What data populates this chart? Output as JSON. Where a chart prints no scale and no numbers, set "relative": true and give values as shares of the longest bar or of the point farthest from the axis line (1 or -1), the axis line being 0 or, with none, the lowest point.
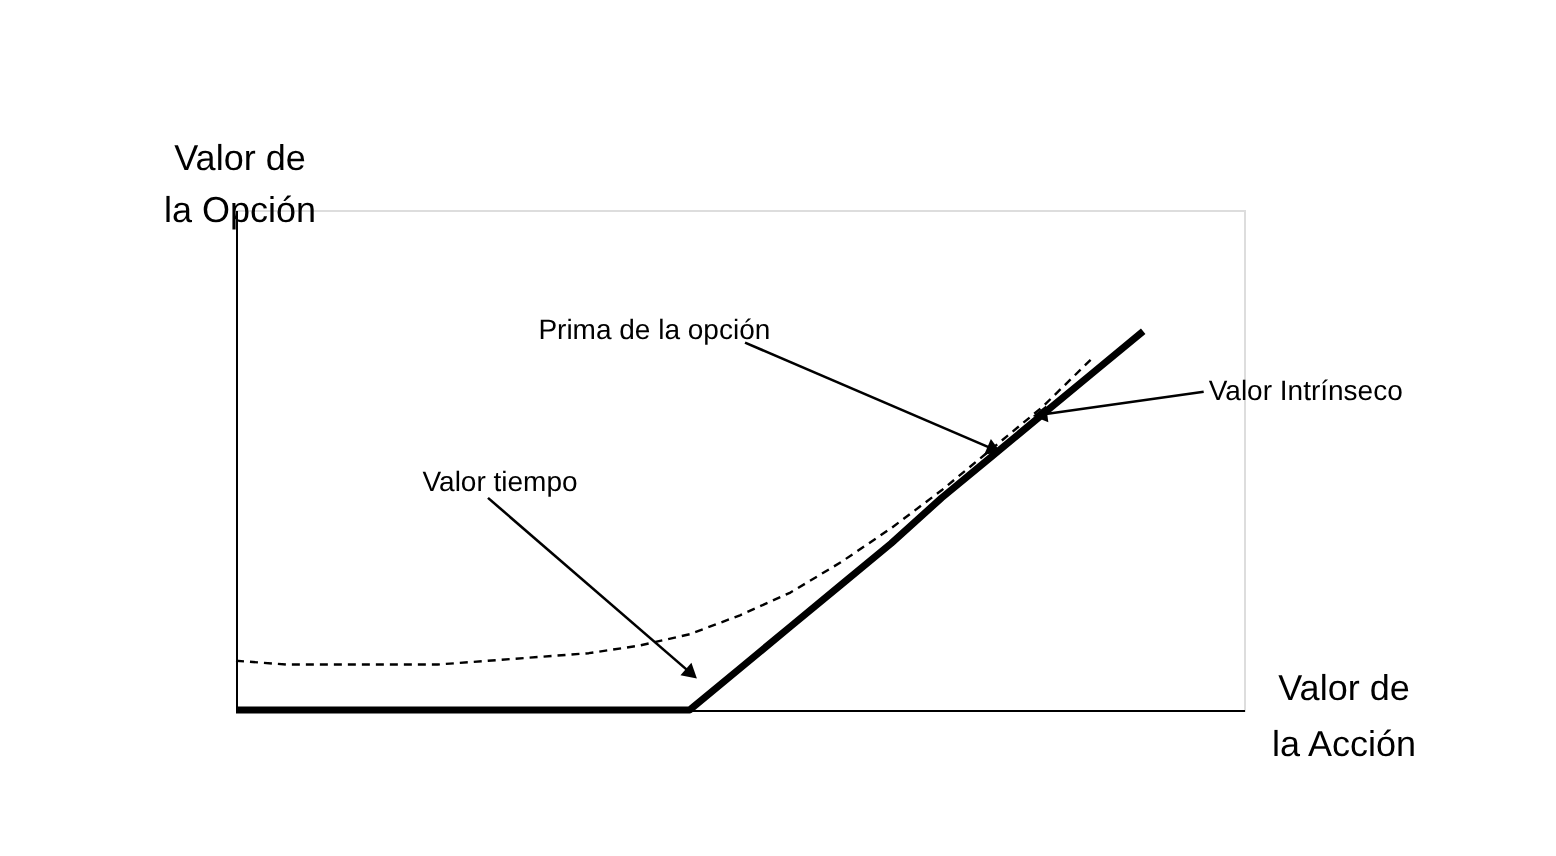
{
  "chart_data": {
    "type": "line",
    "relative": true,
    "xlabel": "Valor de la Acción",
    "ylabel": "Valor de la Opción",
    "categories": [
      null,
      null,
      null,
      null,
      null,
      null,
      null,
      null,
      null,
      null,
      null,
      null,
      null,
      null,
      null,
      null,
      null,
      null,
      null,
      null,
      null
    ],
    "series": [
      {
        "color": "#000000",
        "line_style": "dashed",
        "values": [
          0.13,
          0.12,
          0.12,
          0.12,
          0.12,
          0.13,
          0.14,
          0.15,
          0.17,
          0.2,
          0.25,
          0.31,
          0.39,
          0.48,
          0.58,
          0.69,
          0.8,
          0.93,
          null,
          null,
          null
        ]
      },
      {
        "color": "#000000",
        "line_style": "solid",
        "values": [
          0,
          0,
          0,
          0,
          0,
          0,
          0,
          0,
          0,
          0,
          0.11,
          0.22,
          0.33,
          0.44,
          0.56,
          0.67,
          0.78,
          0.89,
          1,
          null,
          null
        ]
      }
    ],
    "annotations": [
      "Prima de la opción",
      "Valor Intrínseco",
      "Valor tiempo"
    ],
    "grid": false,
    "marker": "none"
  }
}
